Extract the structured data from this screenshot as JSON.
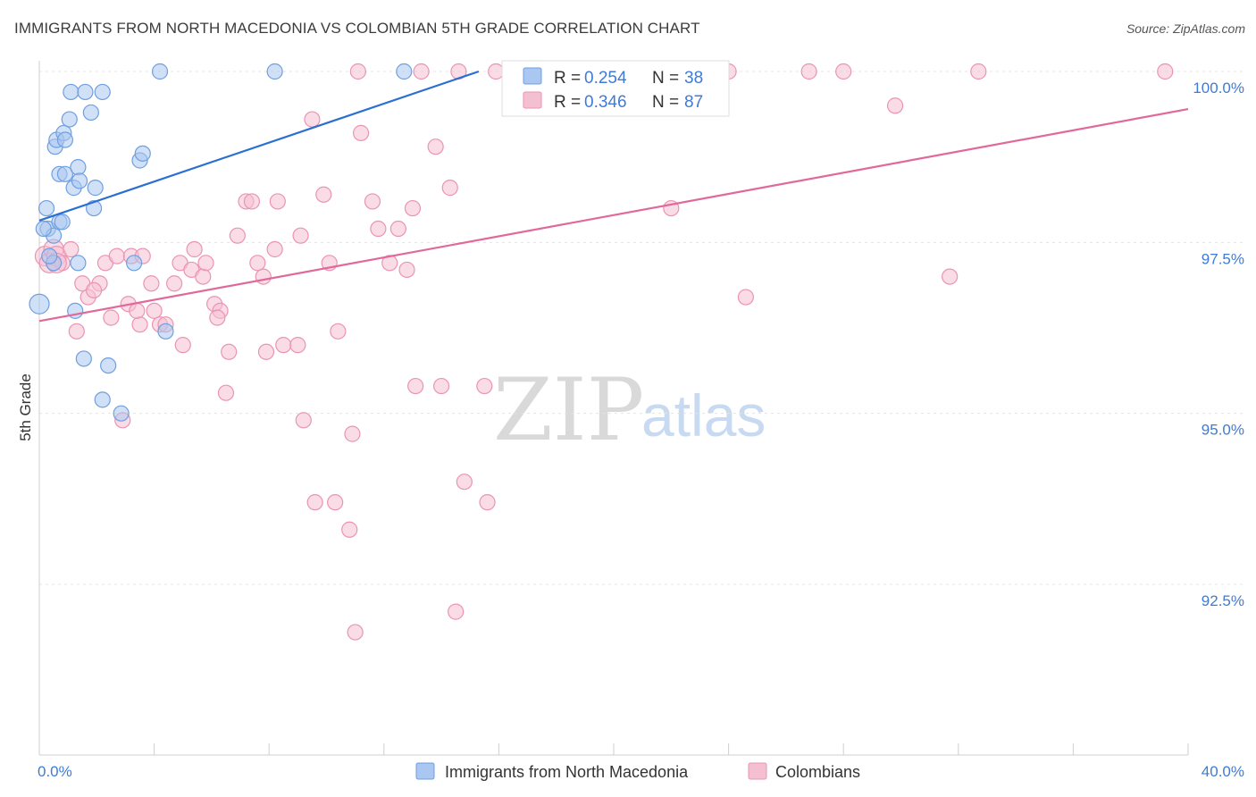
{
  "title": "IMMIGRANTS FROM NORTH MACEDONIA VS COLOMBIAN 5TH GRADE CORRELATION CHART",
  "source": "Source: ZipAtlas.com",
  "watermark": {
    "zip": "ZIP",
    "atlas": "atlas"
  },
  "colors": {
    "blue_fill": "#a9c7f0",
    "blue_stroke": "#6f9fe0",
    "blue_line": "#2a6fd1",
    "pink_fill": "#f5bfd2",
    "pink_stroke": "#ea94b4",
    "pink_line": "#e0699a",
    "accent_text": "#3f7bd6"
  },
  "legend": {
    "blue": {
      "r_label": "R = ",
      "r_value": "0.254",
      "n_label": "N = ",
      "n_value": "38"
    },
    "pink": {
      "r_label": "R = ",
      "r_value": "0.346",
      "n_label": "N = ",
      "n_value": "87"
    }
  },
  "chart_data": {
    "type": "scatter",
    "title": "IMMIGRANTS FROM NORTH MACEDONIA VS COLOMBIAN 5TH GRADE CORRELATION CHART",
    "xlabel": "",
    "ylabel": "5th Grade",
    "xlim": [
      0,
      40
    ],
    "ylim": [
      90.2,
      100.25
    ],
    "x_tick_labels": [
      {
        "value": 0,
        "label": "0.0%"
      },
      {
        "value": 40,
        "label": "40.0%"
      }
    ],
    "y_tick_labels": [
      {
        "value": 100.0,
        "label": "100.0%"
      },
      {
        "value": 97.5,
        "label": "97.5%"
      },
      {
        "value": 95.0,
        "label": "95.0%"
      },
      {
        "value": 92.5,
        "label": "92.5%"
      }
    ],
    "series": [
      {
        "name": "Immigrants from North Macedonia",
        "color": "blue",
        "trend": {
          "x": [
            0,
            15.3
          ],
          "y": [
            97.82,
            100.0
          ]
        },
        "points": [
          [
            0.0,
            96.6
          ],
          [
            0.25,
            98.0
          ],
          [
            0.3,
            97.7
          ],
          [
            0.5,
            97.2
          ],
          [
            0.5,
            97.6
          ],
          [
            0.55,
            98.9
          ],
          [
            0.6,
            99.0
          ],
          [
            0.7,
            98.5
          ],
          [
            0.7,
            97.8
          ],
          [
            0.8,
            97.8
          ],
          [
            0.85,
            99.1
          ],
          [
            0.9,
            98.5
          ],
          [
            0.9,
            99.0
          ],
          [
            1.05,
            99.3
          ],
          [
            1.1,
            99.7
          ],
          [
            1.2,
            98.3
          ],
          [
            1.35,
            98.6
          ],
          [
            1.4,
            98.4
          ],
          [
            1.35,
            97.2
          ],
          [
            1.25,
            96.5
          ],
          [
            1.55,
            95.8
          ],
          [
            1.6,
            99.7
          ],
          [
            1.8,
            99.4
          ],
          [
            1.9,
            98.0
          ],
          [
            1.95,
            98.3
          ],
          [
            2.2,
            99.7
          ],
          [
            2.4,
            95.7
          ],
          [
            2.2,
            95.2
          ],
          [
            2.85,
            95.0
          ],
          [
            3.3,
            97.2
          ],
          [
            3.5,
            98.7
          ],
          [
            3.6,
            98.8
          ],
          [
            4.4,
            96.2
          ],
          [
            4.2,
            100.0
          ],
          [
            8.2,
            100.0
          ],
          [
            12.7,
            100.0
          ],
          [
            0.15,
            97.7
          ],
          [
            0.35,
            97.3
          ]
        ]
      },
      {
        "name": "Colombians",
        "color": "pink",
        "trend": {
          "x": [
            0,
            40
          ],
          "y": [
            96.35,
            99.45
          ]
        },
        "points": [
          [
            0.2,
            97.3
          ],
          [
            0.35,
            97.2
          ],
          [
            0.5,
            97.4
          ],
          [
            0.6,
            97.3
          ],
          [
            0.8,
            97.2
          ],
          [
            1.1,
            97.4
          ],
          [
            1.3,
            96.2
          ],
          [
            1.5,
            96.9
          ],
          [
            1.7,
            96.7
          ],
          [
            2.1,
            96.9
          ],
          [
            2.3,
            97.2
          ],
          [
            2.5,
            96.4
          ],
          [
            2.7,
            97.3
          ],
          [
            3.1,
            96.6
          ],
          [
            3.2,
            97.3
          ],
          [
            3.5,
            96.3
          ],
          [
            3.6,
            97.3
          ],
          [
            3.9,
            96.9
          ],
          [
            4.0,
            96.5
          ],
          [
            4.2,
            96.3
          ],
          [
            4.4,
            96.3
          ],
          [
            4.7,
            96.9
          ],
          [
            4.9,
            97.2
          ],
          [
            5.0,
            96.0
          ],
          [
            5.3,
            97.1
          ],
          [
            5.4,
            97.4
          ],
          [
            5.7,
            97.0
          ],
          [
            5.8,
            97.2
          ],
          [
            6.1,
            96.6
          ],
          [
            6.3,
            96.5
          ],
          [
            6.6,
            95.9
          ],
          [
            6.5,
            95.3
          ],
          [
            6.9,
            97.6
          ],
          [
            7.2,
            98.1
          ],
          [
            7.4,
            98.1
          ],
          [
            7.6,
            97.2
          ],
          [
            7.8,
            97.0
          ],
          [
            7.9,
            95.9
          ],
          [
            8.2,
            97.4
          ],
          [
            8.3,
            98.1
          ],
          [
            8.5,
            96.0
          ],
          [
            9.0,
            96.0
          ],
          [
            9.1,
            97.6
          ],
          [
            9.2,
            94.9
          ],
          [
            9.5,
            99.3
          ],
          [
            9.6,
            93.7
          ],
          [
            9.9,
            98.2
          ],
          [
            10.1,
            97.2
          ],
          [
            10.3,
            93.7
          ],
          [
            10.4,
            96.2
          ],
          [
            10.8,
            93.3
          ],
          [
            10.9,
            94.7
          ],
          [
            11.2,
            99.1
          ],
          [
            11.6,
            98.1
          ],
          [
            11.8,
            97.7
          ],
          [
            12.2,
            97.2
          ],
          [
            12.5,
            97.7
          ],
          [
            12.8,
            97.1
          ],
          [
            13.0,
            98.0
          ],
          [
            13.1,
            95.4
          ],
          [
            13.8,
            98.9
          ],
          [
            14.0,
            95.4
          ],
          [
            14.3,
            98.3
          ],
          [
            14.5,
            92.1
          ],
          [
            14.8,
            94.0
          ],
          [
            15.5,
            95.4
          ],
          [
            15.6,
            93.7
          ],
          [
            11.0,
            91.8
          ],
          [
            6.2,
            96.4
          ],
          [
            1.9,
            96.8
          ],
          [
            2.9,
            94.9
          ],
          [
            3.4,
            96.5
          ],
          [
            0.6,
            97.2
          ],
          [
            22.0,
            98.0
          ],
          [
            24.6,
            96.7
          ],
          [
            29.8,
            99.5
          ],
          [
            31.7,
            97.0
          ],
          [
            11.1,
            100.0
          ],
          [
            13.3,
            100.0
          ],
          [
            14.6,
            100.0
          ],
          [
            15.9,
            100.0
          ],
          [
            17.6,
            100.0
          ],
          [
            24.0,
            100.0
          ],
          [
            26.8,
            100.0
          ],
          [
            28.0,
            100.0
          ],
          [
            32.7,
            100.0
          ],
          [
            39.2,
            100.0
          ]
        ]
      }
    ]
  },
  "bottom_legend": [
    {
      "key": "blue",
      "label": "Immigrants from North Macedonia"
    },
    {
      "key": "pink",
      "label": "Colombians"
    }
  ]
}
